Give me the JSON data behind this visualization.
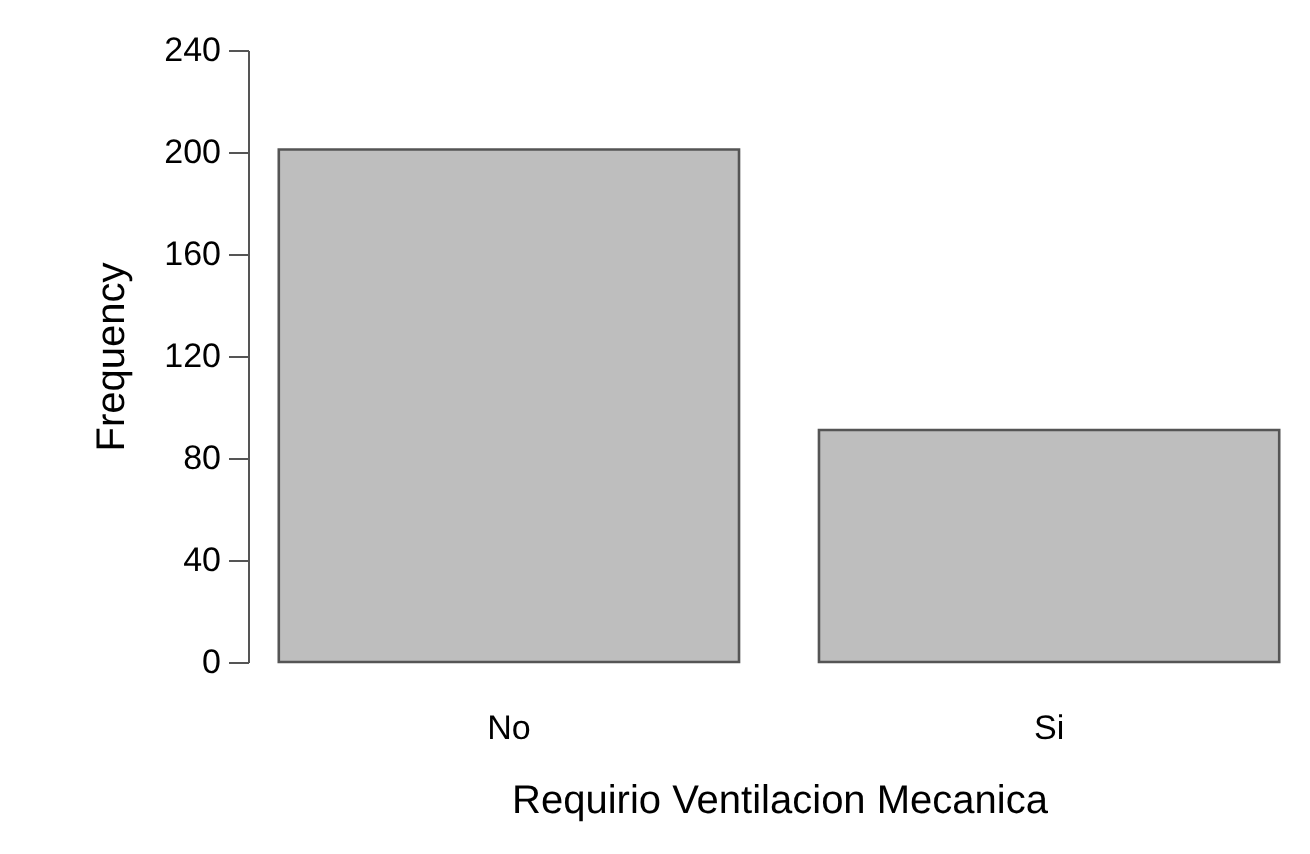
{
  "chart_data": {
    "type": "bar",
    "xlabel": "Requirio Ventilacion Mecanica",
    "ylabel": "Frequency",
    "categories": [
      "No",
      "Si"
    ],
    "values": [
      201,
      91
    ],
    "color": "#bebebe",
    "ylim": [
      0,
      240
    ],
    "yticks": [
      0,
      40,
      80,
      120,
      160,
      200,
      240
    ]
  }
}
